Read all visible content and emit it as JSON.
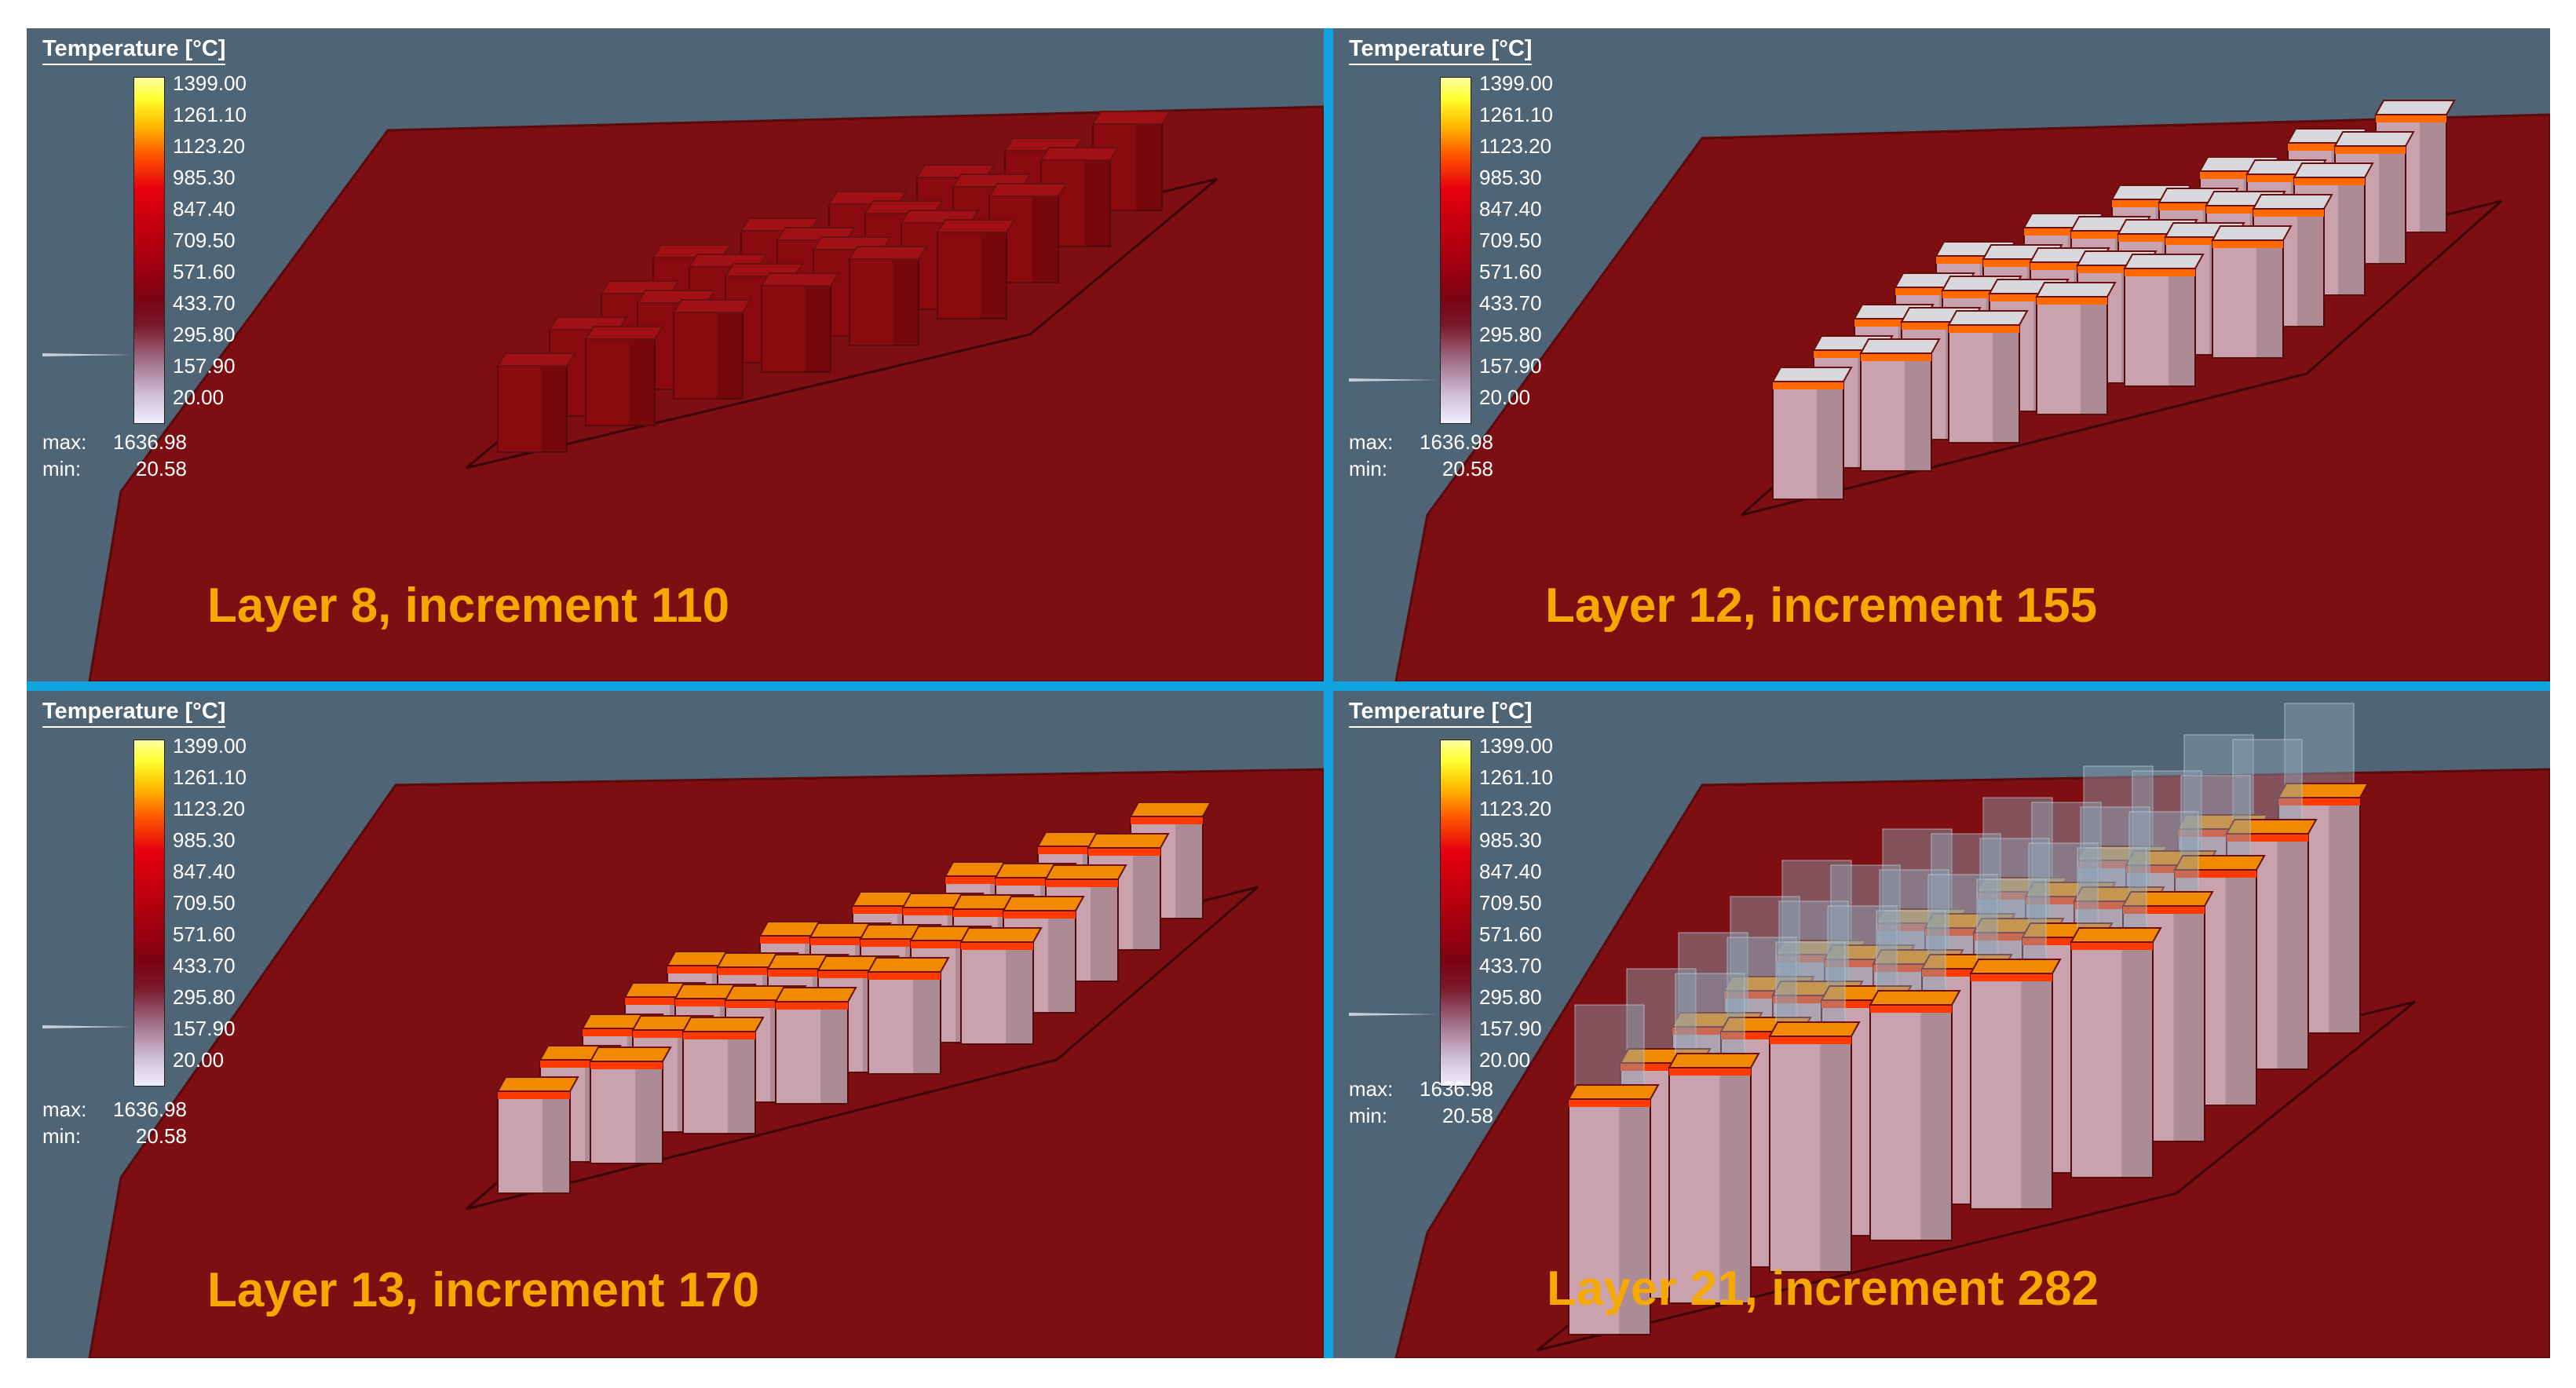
{
  "colors": {
    "background": "#4f6475",
    "divider": "#10a3e0",
    "caption": "#f5a800",
    "plate": "#7d0f12",
    "pillar_hot": "#f28a00",
    "pillar_cold": "#c9a2ad",
    "pillar_unbuilt": "#8fa5b5"
  },
  "panels": [
    {
      "caption": "Layer 8, increment 110",
      "legend": {
        "title": "Temperature [°C]",
        "ticks": [
          "1399.00",
          "1261.10",
          "1123.20",
          "985.30",
          "847.40",
          "709.50",
          "571.60",
          "433.70",
          "295.80",
          "157.90",
          "20.00"
        ],
        "max_label": "max:",
        "max_value": "1636.98",
        "min_label": "min:",
        "min_value": "20.58"
      },
      "pillar_style": "dark"
    },
    {
      "caption": "Layer 12, increment 155",
      "legend": {
        "title": "Temperature [°C]",
        "ticks": [
          "1399.00",
          "1261.10",
          "1123.20",
          "985.30",
          "847.40",
          "709.50",
          "571.60",
          "433.70",
          "295.80",
          "157.90",
          "20.00"
        ],
        "max_label": "max:",
        "max_value": "1636.98",
        "min_label": "min:",
        "min_value": "20.58"
      },
      "pillar_style": "hot-white"
    },
    {
      "caption": "Layer 13, increment 170",
      "legend": {
        "title": "Temperature [°C]",
        "ticks": [
          "1399.00",
          "1261.10",
          "1123.20",
          "985.30",
          "847.40",
          "709.50",
          "571.60",
          "433.70",
          "295.80",
          "157.90",
          "20.00"
        ],
        "max_label": "max:",
        "max_value": "1636.98",
        "min_label": "min:",
        "min_value": "20.58"
      },
      "pillar_style": "hot-orange"
    },
    {
      "caption": "Layer 21, increment 282",
      "legend": {
        "title": "Temperature [°C]",
        "ticks": [
          "1399.00",
          "1261.10",
          "1123.20",
          "985.30",
          "847.40",
          "709.50",
          "571.60",
          "433.70",
          "295.80",
          "157.90",
          "20.00"
        ],
        "max_label": "max:",
        "max_value": "1636.98",
        "min_label": "min:",
        "min_value": "20.58"
      },
      "pillar_style": "tall"
    }
  ]
}
